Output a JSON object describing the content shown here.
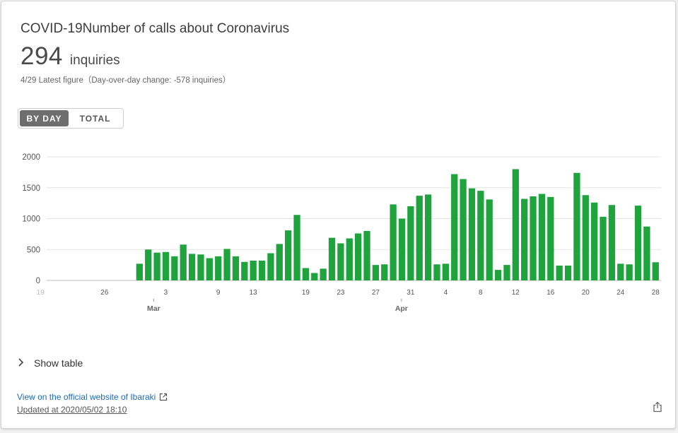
{
  "card": {
    "title": "COVID-19Number of calls about Coronavirus",
    "value": "294",
    "unit": "inquiries",
    "subtitle": "4/29 Latest figure（Day-over-day change: -578 inquiries）",
    "toggle": {
      "by_day": "BY DAY",
      "total": "TOTAL",
      "selected": "BY DAY"
    },
    "show_table": "Show table",
    "official_link": "View on the official website of Ibaraki",
    "updated": "Updated at 2020/05/02 18:10",
    "icons": {
      "expand": "chevron-right-icon",
      "external": "external-link-icon",
      "share": "share-icon"
    }
  },
  "chart_data": {
    "type": "bar",
    "color": "#1fa33d",
    "ylim": [
      0,
      2000
    ],
    "yticks": [
      "0",
      "500",
      "1000",
      "1500",
      "2000"
    ],
    "grid": true,
    "x_tick_labels": [
      "19",
      "26",
      "3",
      "9",
      "13",
      "19",
      "23",
      "27",
      "31",
      "4",
      "8",
      "12",
      "16",
      "20",
      "24",
      "28"
    ],
    "month_labels": [
      "Mar",
      "Apr"
    ],
    "categories": [
      "2/20",
      "2/21",
      "2/22",
      "2/23",
      "2/24",
      "2/25",
      "2/26",
      "2/27",
      "2/28",
      "2/29",
      "3/1",
      "3/2",
      "3/3",
      "3/4",
      "3/5",
      "3/6",
      "3/7",
      "3/8",
      "3/9",
      "3/10",
      "3/11",
      "3/12",
      "3/13",
      "3/14",
      "3/15",
      "3/16",
      "3/17",
      "3/18",
      "3/19",
      "3/20",
      "3/21",
      "3/22",
      "3/23",
      "3/24",
      "3/25",
      "3/26",
      "3/27",
      "3/28",
      "3/29",
      "3/30",
      "3/31",
      "4/1",
      "4/2",
      "4/3",
      "4/4",
      "4/5",
      "4/6",
      "4/7",
      "4/8",
      "4/9",
      "4/10",
      "4/11",
      "4/12",
      "4/13",
      "4/14",
      "4/15",
      "4/16",
      "4/17",
      "4/18",
      "4/19",
      "4/20",
      "4/21",
      "4/22",
      "4/23",
      "4/24",
      "4/25",
      "4/26",
      "4/27",
      "4/28",
      "4/29"
    ],
    "values": [
      0,
      0,
      0,
      0,
      0,
      0,
      0,
      0,
      0,
      0,
      270,
      500,
      450,
      460,
      390,
      580,
      430,
      420,
      360,
      390,
      510,
      390,
      300,
      320,
      320,
      440,
      590,
      810,
      1060,
      200,
      120,
      190,
      690,
      600,
      680,
      760,
      800,
      250,
      260,
      1230,
      1000,
      1200,
      1370,
      1390,
      260,
      270,
      1720,
      1640,
      1490,
      1450,
      1310,
      170,
      250,
      1800,
      1320,
      1360,
      1400,
      1350,
      240,
      240,
      1740,
      1380,
      1260,
      1030,
      1220,
      270,
      260,
      1210,
      872,
      294
    ]
  }
}
